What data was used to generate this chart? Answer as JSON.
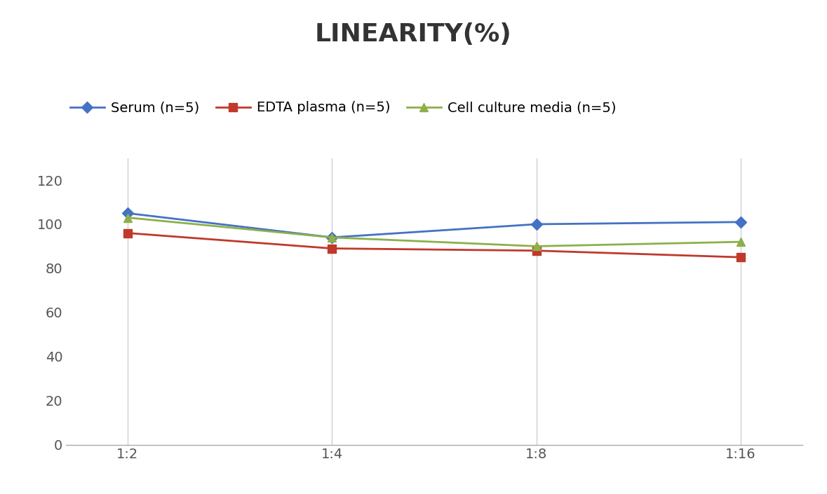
{
  "title": "LINEARITY(%)",
  "x_labels": [
    "1:2",
    "1:4",
    "1:8",
    "1:16"
  ],
  "x_positions": [
    0,
    1,
    2,
    3
  ],
  "series": [
    {
      "label": "Serum (n=5)",
      "values": [
        105,
        94,
        100,
        101
      ],
      "color": "#4472C4",
      "marker": "D",
      "markersize": 8,
      "linewidth": 2.0
    },
    {
      "label": "EDTA plasma (n=5)",
      "values": [
        96,
        89,
        88,
        85
      ],
      "color": "#C0392B",
      "marker": "s",
      "markersize": 8,
      "linewidth": 2.0
    },
    {
      "label": "Cell culture media (n=5)",
      "values": [
        103,
        94,
        90,
        92
      ],
      "color": "#8DB04A",
      "marker": "^",
      "markersize": 9,
      "linewidth": 2.0
    }
  ],
  "ylim": [
    0,
    130
  ],
  "yticks": [
    0,
    20,
    40,
    60,
    80,
    100,
    120
  ],
  "background_color": "#ffffff",
  "grid_color": "#d0d0d0",
  "title_fontsize": 26,
  "legend_fontsize": 14,
  "tick_fontsize": 14
}
